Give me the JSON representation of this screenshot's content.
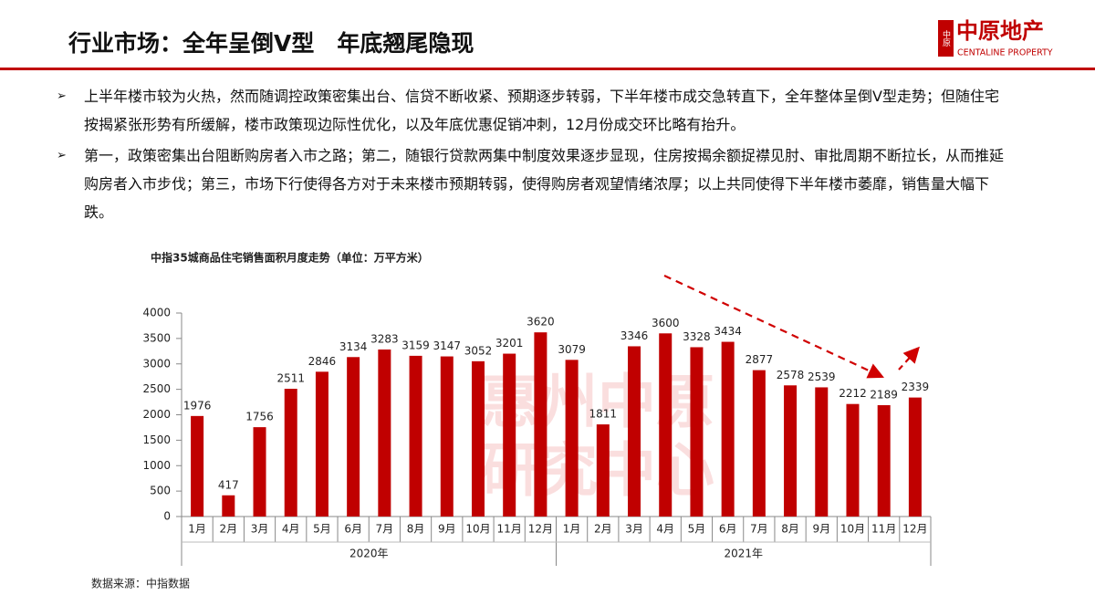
{
  "header": {
    "title": "行业市场：全年呈倒V型　年底翘尾隐现",
    "logo_cn": "中原地产",
    "logo_mark": "中原",
    "logo_en": "CENTALINE PROPERTY"
  },
  "bullets": [
    "上半年楼市较为火热，然而随调控政策密集出台、信贷不断收紧、预期逐步转弱，下半年楼市成交急转直下，全年整体呈倒V型走势；但随住宅按揭紧张形势有所缓解，楼市政策现边际性优化，以及年底优惠促销冲刺，12月份成交环比略有抬升。",
    "第一，政策密集出台阻断购房者入市之路；第二，随银行贷款两集中制度效果逐步显现，住房按揭余额捉襟见肘、审批周期不断拉长，从而推延购房者入市步伐；第三，市场下行使得各方对于未来楼市预期转弱，使得购房者观望情绪浓厚；以上共同使得下半年楼市萎靡，销售量大幅下跌。"
  ],
  "watermark": [
    "惠州中原",
    "研究中心"
  ],
  "chart_data": {
    "type": "bar",
    "title": "中指35城商品住宅销售面积月度走势（单位：万平方米）",
    "categories": [
      "1月",
      "2月",
      "3月",
      "4月",
      "5月",
      "6月",
      "7月",
      "8月",
      "9月",
      "10月",
      "11月",
      "12月",
      "1月",
      "2月",
      "3月",
      "4月",
      "5月",
      "6月",
      "7月",
      "8月",
      "9月",
      "10月",
      "11月",
      "12月"
    ],
    "groups": [
      "2020年",
      "2021年"
    ],
    "values": [
      1976,
      417,
      1756,
      2511,
      2846,
      3134,
      3283,
      3159,
      3147,
      3052,
      3201,
      3620,
      3079,
      1811,
      3346,
      3600,
      3328,
      3434,
      2877,
      2578,
      2539,
      2212,
      2189,
      2339
    ],
    "color": "#c00000",
    "ylim": [
      0,
      4000
    ],
    "yticks": [
      0,
      500,
      1000,
      1500,
      2000,
      2500,
      3000,
      3500,
      4000
    ],
    "source": "数据来源：中指数据"
  }
}
